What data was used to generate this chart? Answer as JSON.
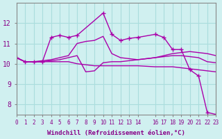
{
  "xlabel": "Windchill (Refroidissement éolien,°C)",
  "ylabel": "",
  "bg_color": "#d0f0f0",
  "grid_color": "#aadddd",
  "line_color": "#aa00aa",
  "xlim": [
    0,
    23
  ],
  "ylim": [
    7.5,
    13
  ],
  "xticks": [
    0,
    1,
    2,
    3,
    4,
    5,
    6,
    7,
    8,
    9,
    10,
    11,
    12,
    13,
    14,
    16,
    17,
    18,
    19,
    20,
    21,
    22,
    23
  ],
  "yticks": [
    8,
    9,
    10,
    11,
    12
  ],
  "series": [
    {
      "x": [
        0,
        1,
        2,
        3,
        4,
        5,
        6,
        7,
        10,
        11,
        12,
        13,
        14,
        16,
        17,
        18,
        19,
        20,
        21,
        22,
        23
      ],
      "y": [
        10.3,
        10.1,
        10.1,
        10.1,
        11.3,
        11.4,
        11.3,
        11.4,
        12.5,
        11.45,
        11.15,
        11.25,
        11.3,
        11.45,
        11.3,
        10.7,
        10.7,
        9.7,
        9.4,
        7.6,
        7.5
      ],
      "marker": true
    },
    {
      "x": [
        0,
        1,
        2,
        3,
        4,
        5,
        6,
        7,
        8,
        9,
        10,
        11,
        12,
        13,
        14,
        16,
        17,
        18,
        19,
        20,
        21,
        22,
        23
      ],
      "y": [
        10.3,
        10.1,
        10.1,
        10.1,
        10.15,
        10.2,
        10.3,
        10.4,
        9.6,
        9.65,
        10.05,
        10.1,
        10.1,
        10.15,
        10.2,
        10.3,
        10.35,
        10.4,
        10.4,
        10.35,
        10.3,
        10.1,
        10.05
      ],
      "marker": false
    },
    {
      "x": [
        0,
        1,
        2,
        3,
        4,
        5,
        6,
        7,
        8,
        9,
        10,
        11,
        12,
        13,
        14,
        16,
        17,
        18,
        19,
        20,
        21,
        22,
        23
      ],
      "y": [
        10.3,
        10.1,
        10.1,
        10.15,
        10.2,
        10.3,
        10.4,
        11.0,
        11.1,
        11.15,
        11.35,
        10.5,
        10.3,
        10.25,
        10.2,
        10.3,
        10.4,
        10.5,
        10.55,
        10.6,
        10.55,
        10.5,
        10.4
      ],
      "marker": false
    },
    {
      "x": [
        0,
        1,
        2,
        3,
        4,
        5,
        6,
        7,
        8,
        9,
        10,
        11,
        12,
        13,
        14,
        16,
        17,
        18,
        19,
        20,
        21,
        22,
        23
      ],
      "y": [
        10.3,
        10.1,
        10.1,
        10.1,
        10.1,
        10.1,
        10.1,
        10.0,
        9.95,
        9.9,
        9.9,
        9.9,
        9.9,
        9.9,
        9.9,
        9.85,
        9.85,
        9.85,
        9.8,
        9.75,
        9.7,
        9.65,
        9.6
      ],
      "marker": false
    }
  ]
}
